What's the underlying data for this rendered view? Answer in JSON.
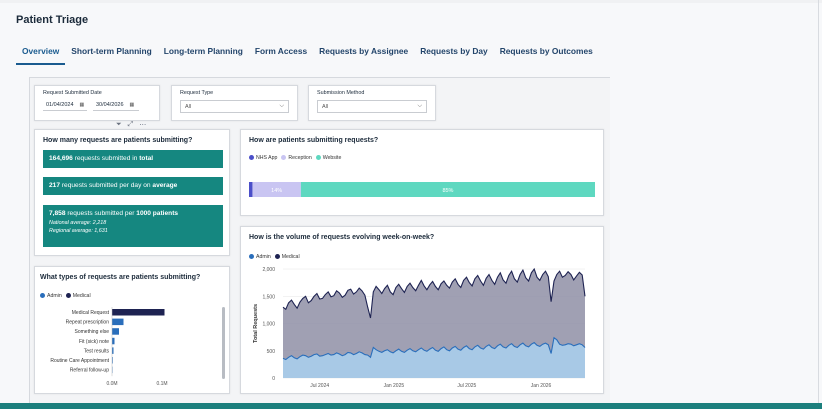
{
  "page_title": "Patient Triage",
  "tabs": [
    {
      "label": "Overview",
      "active": true
    },
    {
      "label": "Short-term Planning"
    },
    {
      "label": "Long-term Planning"
    },
    {
      "label": "Form Access"
    },
    {
      "label": "Requests by Assignee"
    },
    {
      "label": "Requests by Day"
    },
    {
      "label": "Requests by Outcomes"
    }
  ],
  "filters": {
    "date": {
      "label": "Request Submitted Date",
      "from": "01/04/2024",
      "to": "30/04/2026"
    },
    "request_type": {
      "label": "Request Type",
      "value": "All"
    },
    "submission_method": {
      "label": "Submission Method",
      "value": "All"
    }
  },
  "kpis": {
    "title": "How many requests are patients submitting?",
    "total": {
      "value": "164,696",
      "text": "requests submitted in",
      "emph": "total"
    },
    "per_day": {
      "value": "217",
      "text": "requests submitted per day on",
      "emph": "average"
    },
    "per_1000": {
      "value": "7,858",
      "text": "requests submitted per",
      "emph": "1000 patients",
      "national": "National average: 2,218",
      "regional": "Regional average: 1,631"
    }
  },
  "colors": {
    "teal": "#158780",
    "navy": "#1e2352",
    "blue": "#2a6ebb",
    "nhs_app": "#4b4fc9",
    "reception": "#c9c5f2",
    "website": "#5ed8c0",
    "area_grey": "#8f8fa6",
    "area_blue": "#a8c9e6"
  },
  "chart_data": [
    {
      "type": "bar",
      "title": "How are patients submitting requests?",
      "legend": [
        "NHS App",
        "Reception",
        "Website"
      ],
      "legend_position": "top-left",
      "orientation": "horizontal-stacked-100",
      "series": [
        {
          "name": "NHS App",
          "values": [
            1
          ]
        },
        {
          "name": "Reception",
          "values": [
            14
          ]
        },
        {
          "name": "Website",
          "values": [
            85
          ]
        }
      ],
      "data_labels": [
        "",
        "14%",
        "85%"
      ]
    },
    {
      "type": "bar",
      "title": "What types of requests are patients submitting?",
      "legend": [
        "Admin",
        "Medical"
      ],
      "legend_position": "top-left",
      "orientation": "horizontal",
      "categories": [
        "Medical Request",
        "Repeat prescription",
        "Something else",
        "Fit (sick) note",
        "Test results",
        "Routine Care Appointment",
        "Referral follow-up"
      ],
      "series": [
        {
          "name": "Medical",
          "values": [
            105000,
            0,
            0,
            0,
            0,
            0,
            0
          ]
        },
        {
          "name": "Admin",
          "values": [
            0,
            23000,
            14000,
            5000,
            3000,
            1500,
            1000
          ]
        }
      ],
      "xticks": [
        "0.0M",
        "0.1M"
      ],
      "xlim": [
        0,
        140000
      ]
    },
    {
      "type": "area",
      "title": "How is the volume of requests evolving week-on-week?",
      "legend": [
        "Admin",
        "Medical"
      ],
      "legend_position": "top-left",
      "ylabel": "Total Requests",
      "ylim": [
        0,
        2000
      ],
      "yticks": [
        "0",
        "500",
        "1,000",
        "1,500",
        "2,000"
      ],
      "xticks": [
        "Jul 2024",
        "Jan 2025",
        "Jul 2025",
        "Jan 2026"
      ],
      "x_start": "2024-04-01",
      "series": [
        {
          "name": "Medical",
          "values": [
            1300,
            1260,
            1380,
            1430,
            1350,
            1280,
            1390,
            1460,
            1500,
            1380,
            1420,
            1500,
            1550,
            1450,
            1460,
            1530,
            1580,
            1490,
            1510,
            1600,
            1560,
            1480,
            1520,
            1610,
            1630,
            1540,
            1580,
            1650,
            1600,
            1520,
            1300,
            1100,
            1580,
            1680,
            1620,
            1550,
            1640,
            1700,
            1580,
            1530,
            1660,
            1720,
            1640,
            1570,
            1680,
            1740,
            1660,
            1600,
            1700,
            1790,
            1690,
            1620,
            1710,
            1770,
            1680,
            1620,
            1730,
            1780,
            1700,
            1650,
            1760,
            1820,
            1720,
            1660,
            1790,
            1850,
            1750,
            1690,
            1820,
            1880,
            1780,
            1700,
            1830,
            1900,
            1790,
            1720,
            1850,
            1930,
            1800,
            1740,
            1880,
            1960,
            1820,
            1760,
            1900,
            1980,
            1840,
            1780,
            1930,
            2000,
            1850,
            1790,
            1900,
            1960,
            1860,
            1400,
            1780,
            1900,
            1960,
            1850,
            1880,
            1950,
            1900,
            1800,
            1870,
            1940,
            1890,
            1500
          ]
        },
        {
          "name": "Admin",
          "values": [
            360,
            340,
            380,
            410,
            370,
            350,
            390,
            420,
            410,
            380,
            400,
            430,
            440,
            400,
            410,
            430,
            450,
            420,
            430,
            460,
            440,
            410,
            430,
            470,
            460,
            430,
            450,
            480,
            460,
            430,
            420,
            380,
            560,
            520,
            490,
            470,
            500,
            520,
            480,
            460,
            500,
            530,
            490,
            470,
            510,
            540,
            500,
            480,
            520,
            550,
            510,
            490,
            530,
            560,
            510,
            490,
            540,
            570,
            520,
            500,
            550,
            580,
            530,
            510,
            560,
            590,
            540,
            520,
            570,
            600,
            550,
            530,
            580,
            610,
            560,
            540,
            590,
            620,
            570,
            550,
            600,
            630,
            580,
            560,
            610,
            640,
            590,
            570,
            620,
            650,
            600,
            580,
            620,
            640,
            610,
            450,
            740,
            700,
            620,
            600,
            610,
            630,
            620,
            590,
            610,
            630,
            610,
            560
          ]
        }
      ]
    }
  ]
}
